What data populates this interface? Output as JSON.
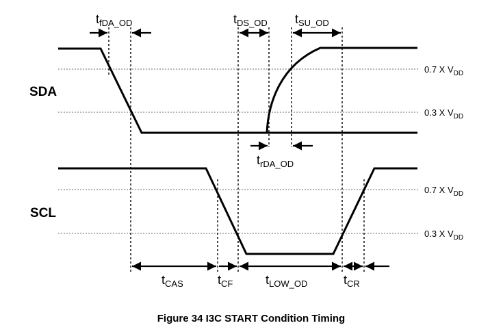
{
  "signals": {
    "sda": "SDA",
    "scl": "SCL"
  },
  "levels": {
    "sda_high": {
      "prefix": "0.7 X V",
      "sub": "DD"
    },
    "sda_low": {
      "prefix": "0.3 X V",
      "sub": "DD"
    },
    "scl_high": {
      "prefix": "0.7 X V",
      "sub": "DD"
    },
    "scl_low": {
      "prefix": "0.3 X V",
      "sub": "DD"
    }
  },
  "timings": {
    "t_fda_od": {
      "main": "t",
      "sub": "fDA_OD"
    },
    "t_ds_od": {
      "main": "t",
      "sub": "DS_OD"
    },
    "t_su_od": {
      "main": "t",
      "sub": "SU_OD"
    },
    "t_rda_od": {
      "main": "t",
      "sub": "rDA_OD"
    },
    "t_cas": {
      "main": "t",
      "sub": "CAS"
    },
    "t_cf": {
      "main": "t",
      "sub": "CF"
    },
    "t_low_od": {
      "main": "t",
      "sub": "LOW_OD"
    },
    "t_cr": {
      "main": "t",
      "sub": "CR"
    }
  },
  "caption": "Figure 34 I3C START Condition Timing"
}
